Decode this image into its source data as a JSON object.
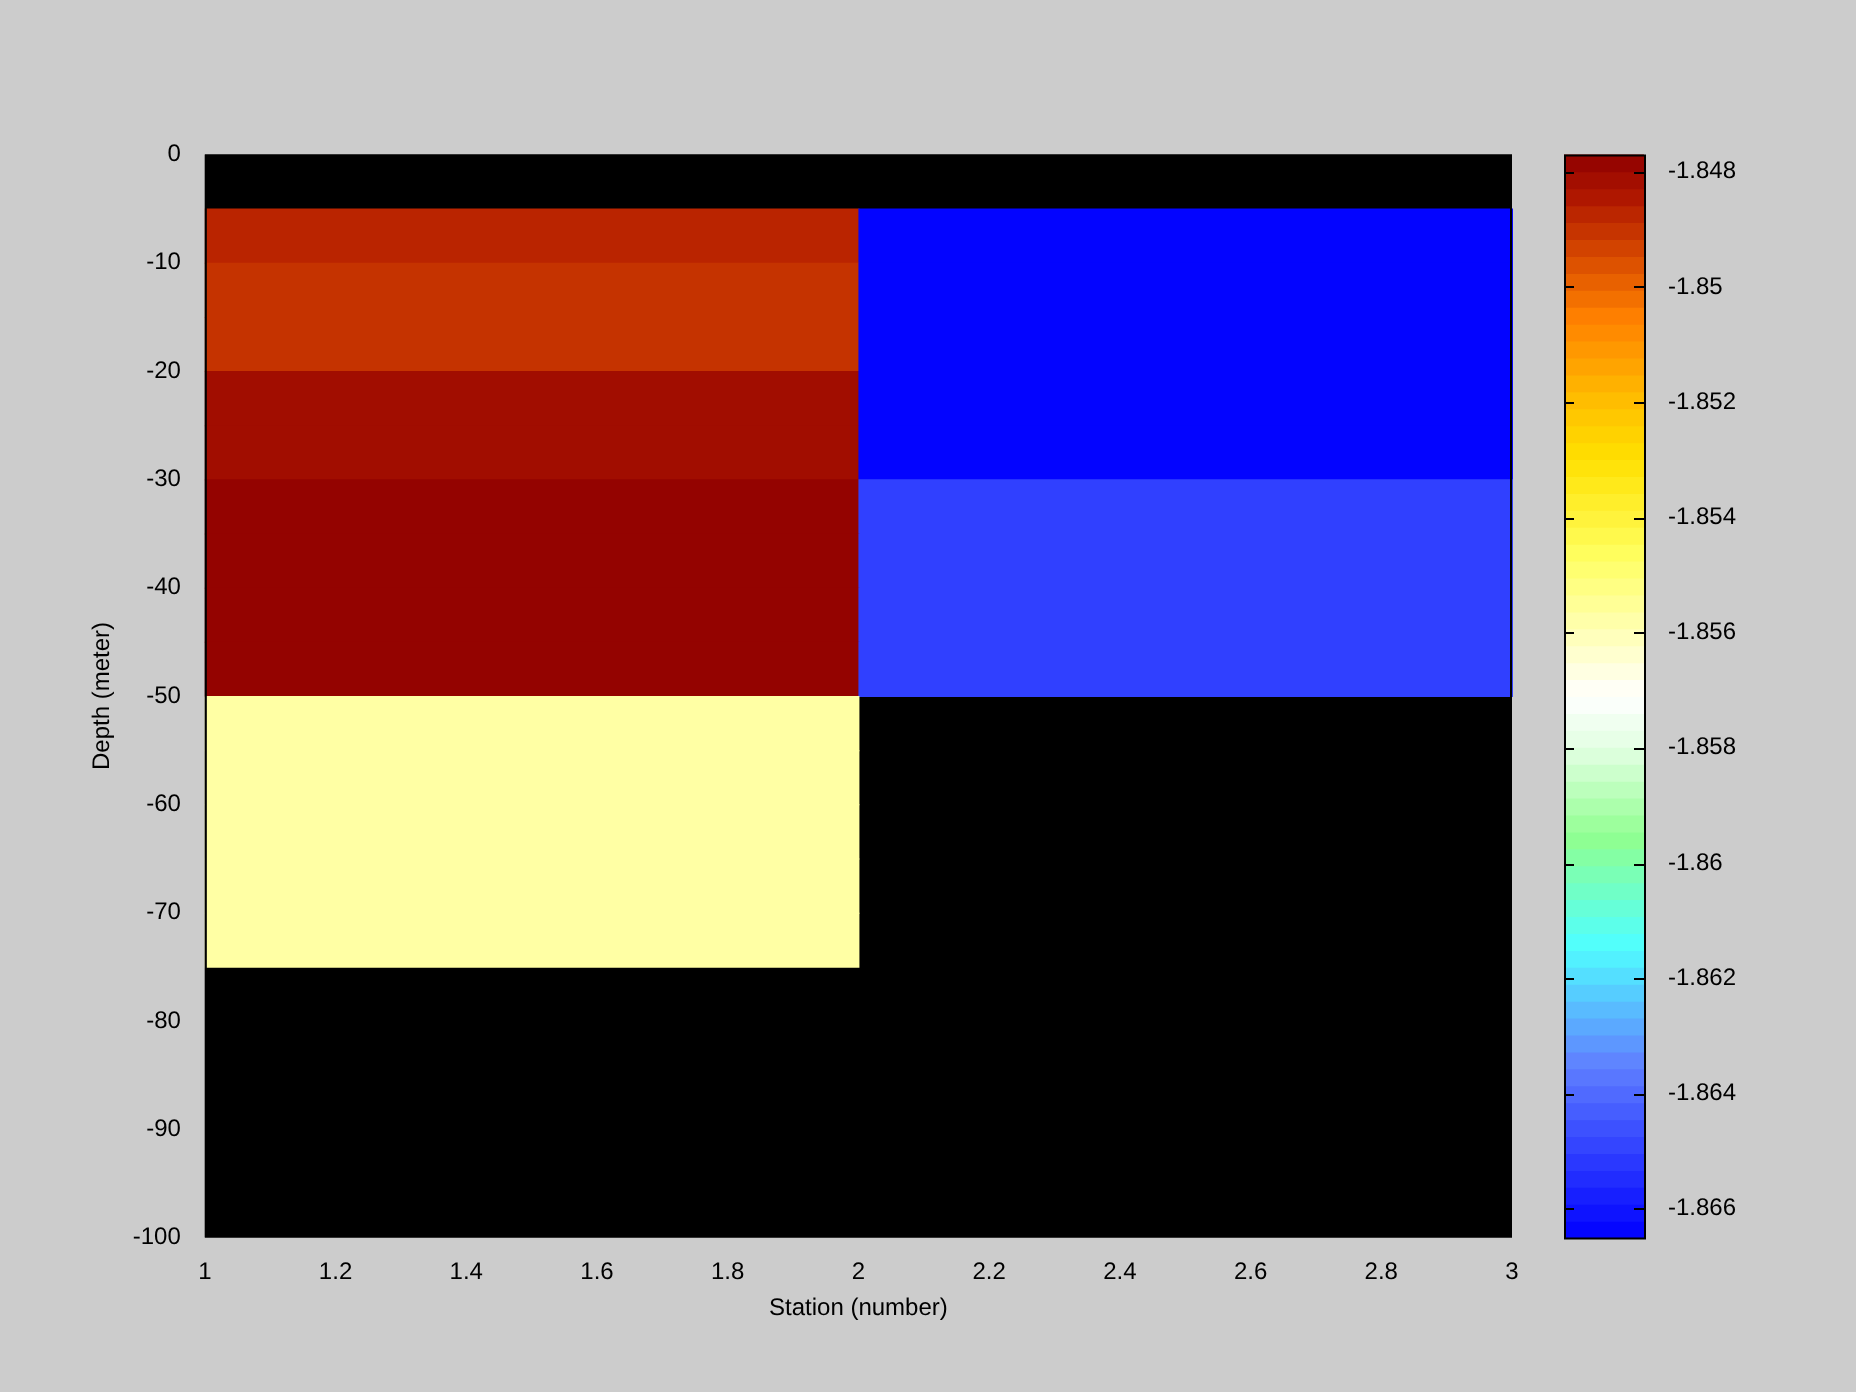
{
  "chart_data": {
    "type": "heatmap",
    "xlabel": "Station (number)",
    "ylabel": "Depth (meter)",
    "x": [
      1.5,
      2.5
    ],
    "y": [
      -7.5,
      -12.5,
      -17.5,
      -22.5,
      -27.5,
      -32.5,
      -37.5,
      -42.5,
      -47.5,
      -52.5,
      -57.5,
      -62.5,
      -67.5,
      -72.5
    ],
    "cells": [
      [
        -1.8487,
        -1.8664
      ],
      [
        -1.849,
        -1.8664
      ],
      [
        -1.849,
        -1.8664
      ],
      [
        -1.8481,
        -1.8664
      ],
      [
        -1.8481,
        -1.8664
      ],
      [
        -1.8478,
        -1.865
      ],
      [
        -1.8478,
        -1.865
      ],
      [
        -1.8478,
        -1.865
      ],
      [
        -1.8478,
        -1.865
      ],
      [
        -1.8557,
        null
      ],
      [
        -1.8557,
        null
      ],
      [
        -1.8557,
        null
      ],
      [
        -1.8557,
        null
      ],
      [
        -1.8557,
        null
      ]
    ],
    "clim": [
      -1.8665,
      -1.8477
    ],
    "cticks": [
      -1.848,
      -1.85,
      -1.852,
      -1.854,
      -1.856,
      -1.858,
      -1.86,
      -1.862,
      -1.864,
      -1.866
    ],
    "xlim": [
      1,
      3
    ],
    "xticks": [
      1,
      1.2,
      1.4,
      1.6,
      1.8,
      2,
      2.2,
      2.4,
      2.6,
      2.8,
      3
    ],
    "ylim": [
      -100,
      0
    ],
    "yticks": [
      0,
      -10,
      -20,
      -30,
      -40,
      -50,
      -60,
      -70,
      -80,
      -90,
      -100
    ]
  }
}
